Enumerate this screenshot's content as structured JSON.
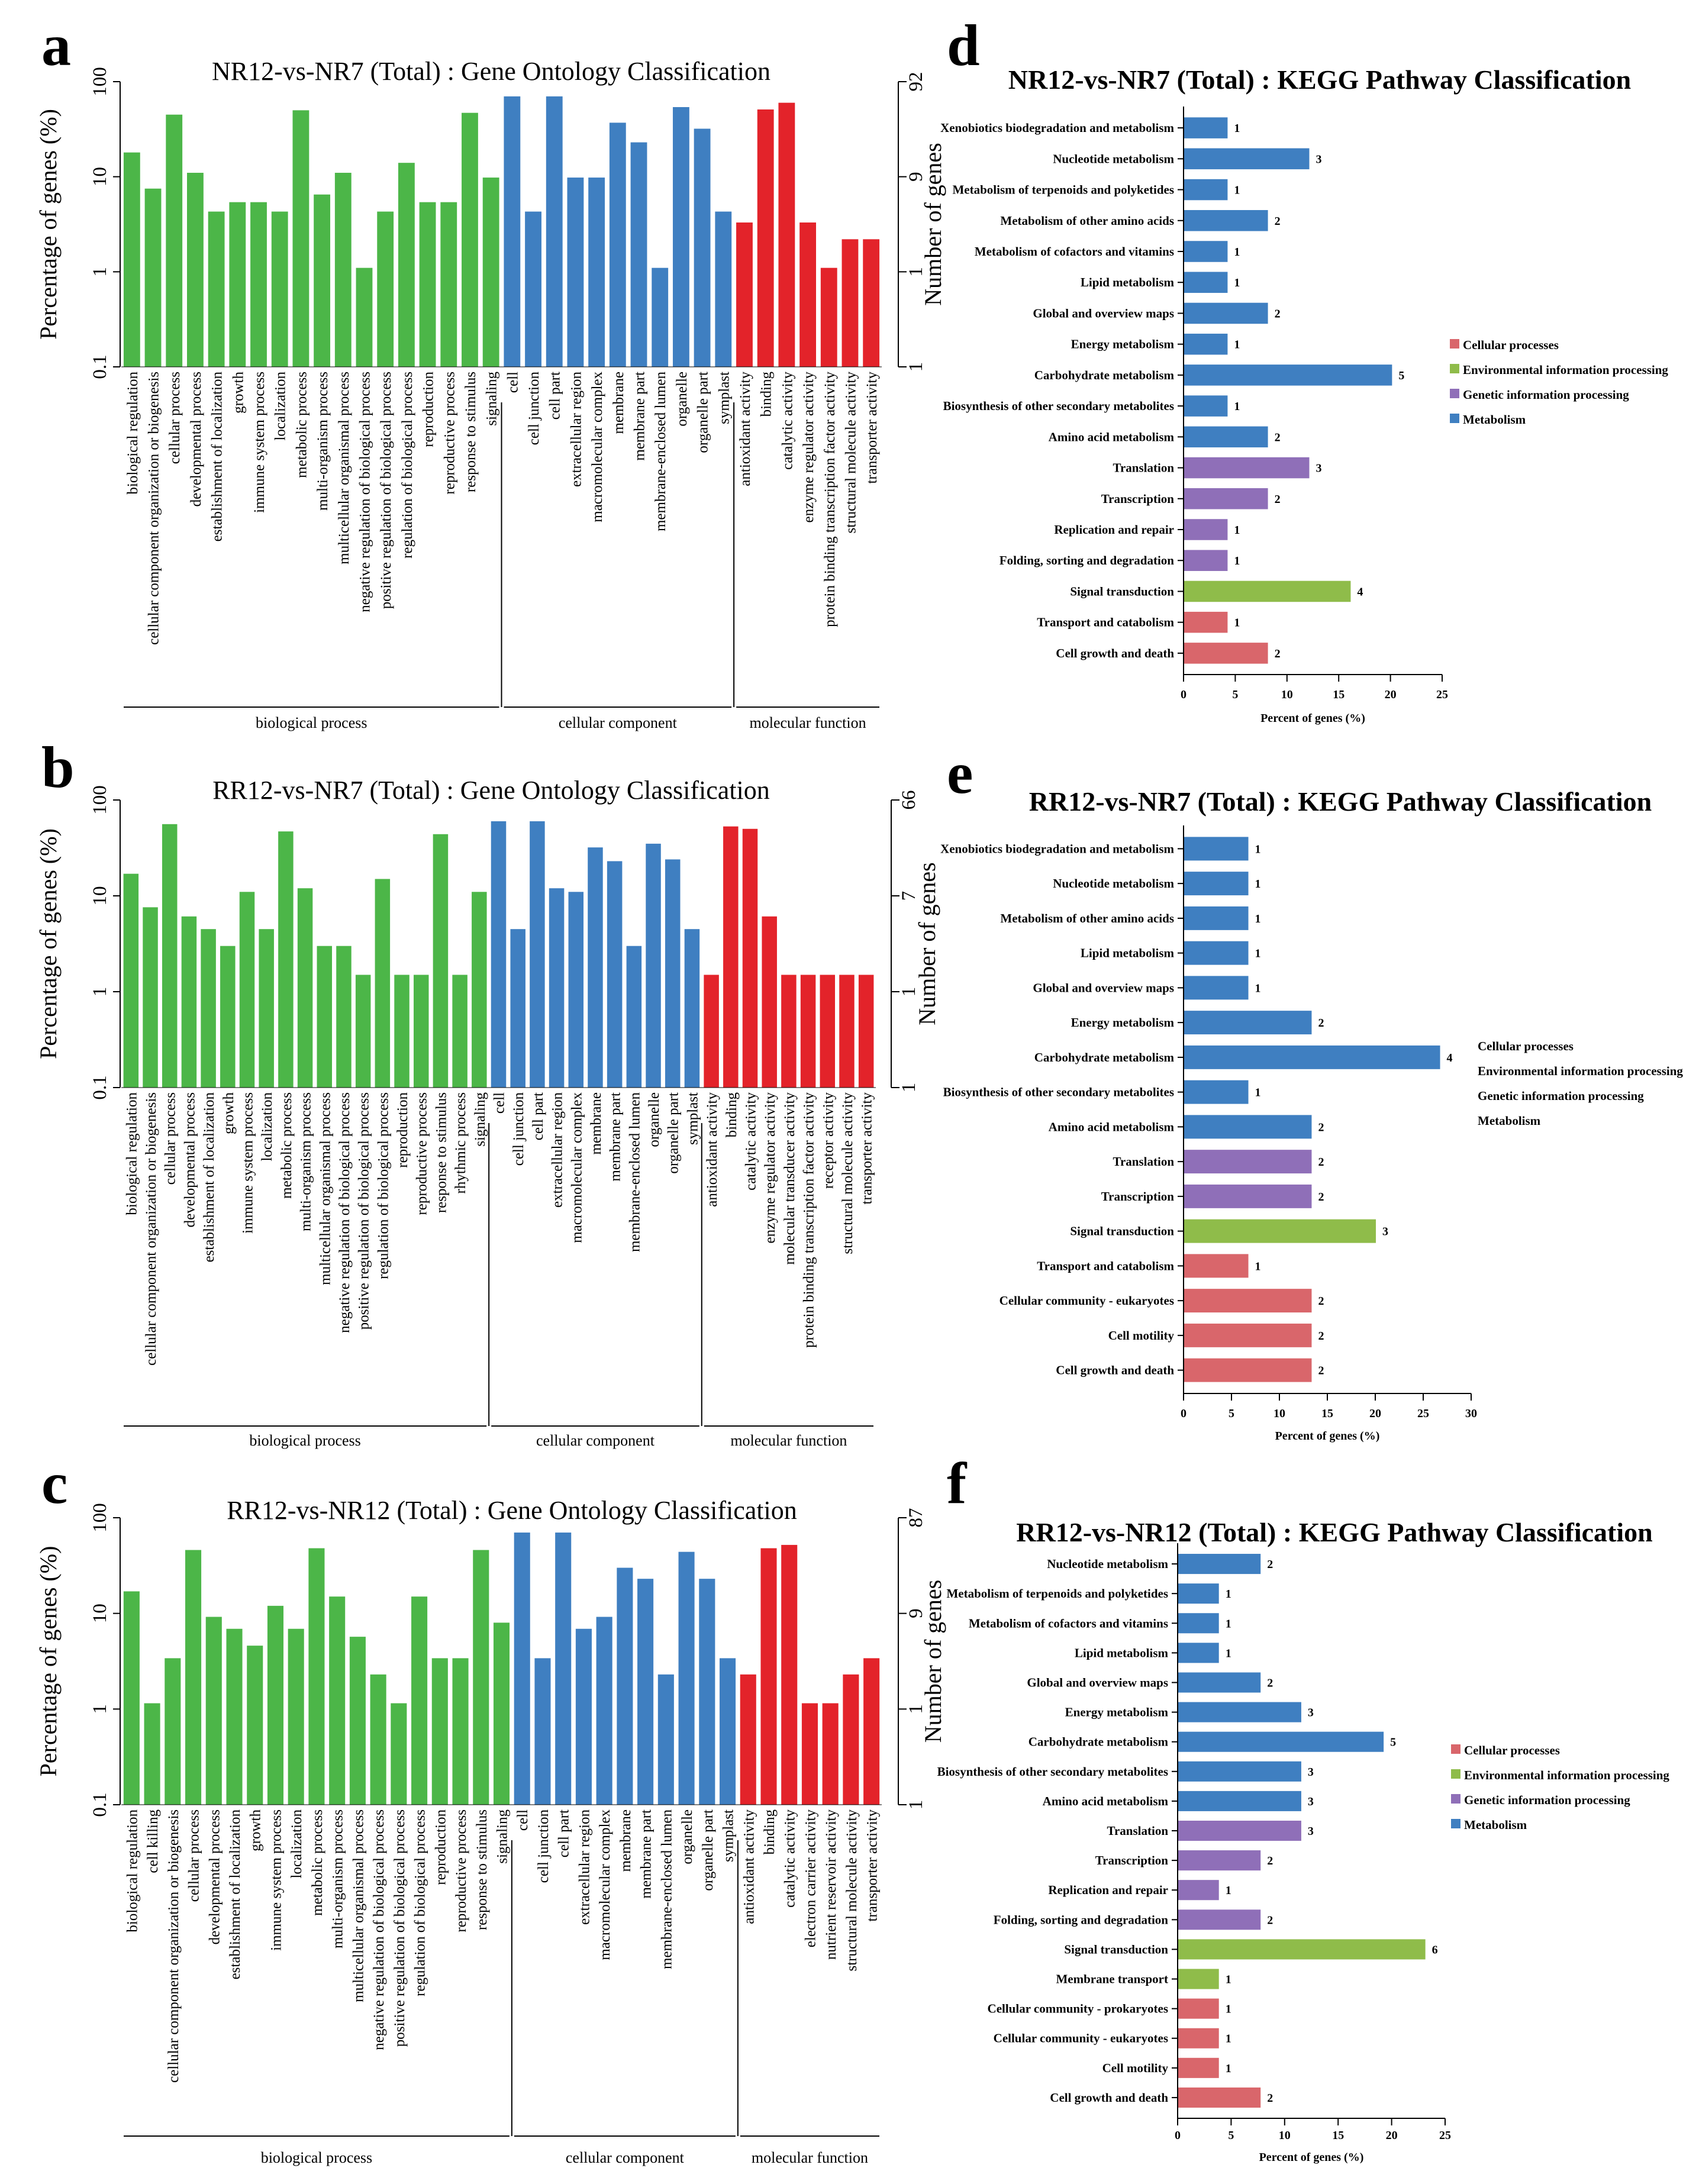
{
  "colors": {
    "biological_process": "#4cb648",
    "cellular_component": "#3f7fc1",
    "molecular_function": "#e3232a",
    "cellular_processes": "#d9666b",
    "environmental_information_processing": "#8fbc4a",
    "genetic_information_processing": "#8f6fb8",
    "metabolism": "#3f7fc1"
  },
  "chart_data": [
    {
      "panel": "a",
      "type": "bar",
      "title": "NR12-vs-NR7 (Total) : Gene Ontology Classification",
      "ylabel": "Percentage of genes (%)",
      "y2label": "Number of genes",
      "yscale": "log",
      "ylim": [
        0.1,
        100
      ],
      "yticks": [
        "0.1",
        "1",
        "10",
        "100"
      ],
      "y2ticks": [
        "1",
        "1",
        "9",
        "92"
      ],
      "groups": [
        {
          "name": "biological process",
          "color_key": "biological_process",
          "categories": [
            "biological regulation",
            "cellular component organization or biogenesis",
            "cellular process",
            "developmental process",
            "establishment of localization",
            "growth",
            "immune system process",
            "localization",
            "metabolic process",
            "multi-organism process",
            "multicellular organismal process",
            "negative regulation of biological process",
            "positive regulation of biological process",
            "regulation of biological process",
            "reproduction",
            "reproductive process",
            "response to stimulus",
            "signaling"
          ],
          "values": [
            18,
            7.5,
            45,
            11,
            4.3,
            5.4,
            5.4,
            4.3,
            50,
            6.5,
            11,
            1.1,
            4.3,
            14,
            5.4,
            5.4,
            47,
            9.8
          ]
        },
        {
          "name": "cellular component",
          "color_key": "cellular_component",
          "categories": [
            "cell",
            "cell junction",
            "cell part",
            "extracellular region",
            "macromolecular complex",
            "membrane",
            "membrane part",
            "membrane-enclosed lumen",
            "organelle",
            "organelle part",
            "symplast"
          ],
          "values": [
            70,
            4.3,
            70,
            9.8,
            9.8,
            37,
            23,
            1.1,
            54,
            32,
            4.3
          ]
        },
        {
          "name": "molecular function",
          "color_key": "molecular_function",
          "categories": [
            "antioxidant activity",
            "binding",
            "catalytic activity",
            "enzyme regulator activity",
            "protein binding transcription factor activity",
            "structural molecule activity",
            "transporter activity"
          ],
          "values": [
            3.3,
            51,
            60,
            3.3,
            1.1,
            2.2,
            2.2
          ]
        }
      ]
    },
    {
      "panel": "b",
      "type": "bar",
      "title": "RR12-vs-NR7 (Total) : Gene Ontology Classification",
      "ylabel": "Percentage of genes (%)",
      "y2label": "Number of genes",
      "yscale": "log",
      "ylim": [
        0.1,
        100
      ],
      "yticks": [
        "0.1",
        "1",
        "10",
        "100"
      ],
      "y2ticks": [
        "1",
        "1",
        "7",
        "66"
      ],
      "groups": [
        {
          "name": "biological process",
          "color_key": "biological_process",
          "categories": [
            "biological regulation",
            "cellular component organization or biogenesis",
            "cellular process",
            "developmental process",
            "establishment of localization",
            "growth",
            "immune system process",
            "localization",
            "metabolic process",
            "multi-organism process",
            "multicellular organismal process",
            "negative regulation of biological process",
            "positive regulation of biological process",
            "regulation of biological process",
            "reproduction",
            "reproductive process",
            "response to stimulus",
            "rhythmic process",
            "signaling"
          ],
          "values": [
            17,
            7.6,
            56,
            6.1,
            4.5,
            3,
            11,
            4.5,
            47,
            12,
            3,
            3,
            1.5,
            15,
            1.5,
            1.5,
            44,
            1.5,
            11
          ]
        },
        {
          "name": "cellular component",
          "color_key": "cellular_component",
          "categories": [
            "cell",
            "cell junction",
            "cell part",
            "extracellular region",
            "macromolecular complex",
            "membrane",
            "membrane part",
            "membrane-enclosed lumen",
            "organelle",
            "organelle part",
            "symplast"
          ],
          "values": [
            60,
            4.5,
            60,
            12,
            11,
            32,
            23,
            3,
            35,
            24,
            4.5
          ]
        },
        {
          "name": "molecular function",
          "color_key": "molecular_function",
          "categories": [
            "antioxidant activity",
            "binding",
            "catalytic activity",
            "enzyme regulator activity",
            "molecular transducer activity",
            "protein binding transcription factor activity",
            "receptor activity",
            "structural molecule activity",
            "transporter activity"
          ],
          "values": [
            1.5,
            53,
            50,
            6.1,
            1.5,
            1.5,
            1.5,
            1.5,
            1.5
          ]
        }
      ]
    },
    {
      "panel": "c",
      "type": "bar",
      "title": "RR12-vs-NR12 (Total) : Gene Ontology Classification",
      "ylabel": "Percentage of genes (%)",
      "y2label": "Number of genes",
      "yscale": "log",
      "ylim": [
        0.1,
        100
      ],
      "yticks": [
        "0.1",
        "1",
        "10",
        "100"
      ],
      "y2ticks": [
        "1",
        "1",
        "9",
        "87"
      ],
      "groups": [
        {
          "name": "biological process",
          "color_key": "biological_process",
          "categories": [
            "biological regulation",
            "cell killing",
            "cellular component organization or biogenesis",
            "cellular process",
            "developmental process",
            "establishment of localization",
            "growth",
            "immune system process",
            "localization",
            "metabolic process",
            "multi-organism process",
            "multicellular organismal process",
            "negative regulation of biological process",
            "positive regulation of biological process",
            "regulation of biological process",
            "reproduction",
            "reproductive process",
            "response to stimulus",
            "signaling"
          ],
          "values": [
            17,
            1.15,
            3.4,
            46,
            9.2,
            6.9,
            4.6,
            12,
            6.9,
            48,
            15,
            5.7,
            2.3,
            1.15,
            15,
            3.4,
            3.4,
            46,
            8
          ]
        },
        {
          "name": "cellular component",
          "color_key": "cellular_component",
          "categories": [
            "cell",
            "cell junction",
            "cell part",
            "extracellular region",
            "macromolecular complex",
            "membrane",
            "membrane part",
            "membrane-enclosed lumen",
            "organelle",
            "organelle part",
            "symplast"
          ],
          "values": [
            70,
            3.4,
            70,
            6.9,
            9.2,
            30,
            23,
            2.3,
            44,
            23,
            3.4
          ]
        },
        {
          "name": "molecular function",
          "color_key": "molecular_function",
          "categories": [
            "antioxidant activity",
            "binding",
            "catalytic activity",
            "electron carrier activity",
            "nutrient reservoir activity",
            "structural molecule activity",
            "transporter activity"
          ],
          "values": [
            2.3,
            48,
            52,
            1.15,
            1.15,
            2.3,
            3.4
          ]
        }
      ]
    },
    {
      "panel": "d",
      "type": "bar",
      "orientation": "horizontal",
      "title": "NR12-vs-NR7 (Total) : KEGG Pathway Classification",
      "xlabel": "Percent of genes (%)",
      "xlim": [
        0,
        25
      ],
      "xticks": [
        "0",
        "5",
        "10",
        "15",
        "20",
        "25"
      ],
      "legend": [
        "Cellular processes",
        "Environmental information processing",
        "Genetic information processing",
        "Metabolism"
      ],
      "legend_keys": [
        "cellular_processes",
        "environmental_information_processing",
        "genetic_information_processing",
        "metabolism"
      ],
      "legend_swatches": true,
      "bars": [
        {
          "label": "Xenobiotics biodegradation and metabolism",
          "value": 4.2,
          "count": "1",
          "color_key": "metabolism"
        },
        {
          "label": "Nucleotide metabolism",
          "value": 12.1,
          "count": "3",
          "color_key": "metabolism"
        },
        {
          "label": "Metabolism of terpenoids and polyketides",
          "value": 4.2,
          "count": "1",
          "color_key": "metabolism"
        },
        {
          "label": "Metabolism of other amino acids",
          "value": 8.1,
          "count": "2",
          "color_key": "metabolism"
        },
        {
          "label": "Metabolism of cofactors and vitamins",
          "value": 4.2,
          "count": "1",
          "color_key": "metabolism"
        },
        {
          "label": "Lipid metabolism",
          "value": 4.2,
          "count": "1",
          "color_key": "metabolism"
        },
        {
          "label": "Global and overview maps",
          "value": 8.1,
          "count": "2",
          "color_key": "metabolism"
        },
        {
          "label": "Energy metabolism",
          "value": 4.2,
          "count": "1",
          "color_key": "metabolism"
        },
        {
          "label": "Carbohydrate metabolism",
          "value": 20.1,
          "count": "5",
          "color_key": "metabolism"
        },
        {
          "label": "Biosynthesis of other secondary metabolites",
          "value": 4.2,
          "count": "1",
          "color_key": "metabolism"
        },
        {
          "label": "Amino acid metabolism",
          "value": 8.1,
          "count": "2",
          "color_key": "metabolism"
        },
        {
          "label": "Translation",
          "value": 12.1,
          "count": "3",
          "color_key": "genetic_information_processing"
        },
        {
          "label": "Transcription",
          "value": 8.1,
          "count": "2",
          "color_key": "genetic_information_processing"
        },
        {
          "label": "Replication and repair",
          "value": 4.2,
          "count": "1",
          "color_key": "genetic_information_processing"
        },
        {
          "label": "Folding, sorting and degradation",
          "value": 4.2,
          "count": "1",
          "color_key": "genetic_information_processing"
        },
        {
          "label": "Signal transduction",
          "value": 16.1,
          "count": "4",
          "color_key": "environmental_information_processing"
        },
        {
          "label": "Transport and catabolism",
          "value": 4.2,
          "count": "1",
          "color_key": "cellular_processes"
        },
        {
          "label": "Cell growth and death",
          "value": 8.1,
          "count": "2",
          "color_key": "cellular_processes"
        }
      ]
    },
    {
      "panel": "e",
      "type": "bar",
      "orientation": "horizontal",
      "title": "RR12-vs-NR7 (Total) : KEGG Pathway Classification",
      "xlabel": "Percent of genes (%)",
      "xlim": [
        0,
        30
      ],
      "xticks": [
        "0",
        "5",
        "10",
        "15",
        "20",
        "25",
        "30"
      ],
      "legend": [
        "Cellular processes",
        "Environmental information processing",
        "Genetic information processing",
        "Metabolism"
      ],
      "legend_keys": [
        "cellular_processes",
        "environmental_information_processing",
        "genetic_information_processing",
        "metabolism"
      ],
      "legend_swatches": false,
      "bars": [
        {
          "label": "Xenobiotics biodegradation and metabolism",
          "value": 6.7,
          "count": "1",
          "color_key": "metabolism"
        },
        {
          "label": "Nucleotide metabolism",
          "value": 6.7,
          "count": "1",
          "color_key": "metabolism"
        },
        {
          "label": "Metabolism of other amino acids",
          "value": 6.7,
          "count": "1",
          "color_key": "metabolism"
        },
        {
          "label": "Lipid metabolism",
          "value": 6.7,
          "count": "1",
          "color_key": "metabolism"
        },
        {
          "label": "Global and overview maps",
          "value": 6.7,
          "count": "1",
          "color_key": "metabolism"
        },
        {
          "label": "Energy metabolism",
          "value": 13.3,
          "count": "2",
          "color_key": "metabolism"
        },
        {
          "label": "Carbohydrate metabolism",
          "value": 26.7,
          "count": "4",
          "color_key": "metabolism"
        },
        {
          "label": "Biosynthesis of other secondary metabolites",
          "value": 6.7,
          "count": "1",
          "color_key": "metabolism"
        },
        {
          "label": "Amino acid metabolism",
          "value": 13.3,
          "count": "2",
          "color_key": "metabolism"
        },
        {
          "label": "Translation",
          "value": 13.3,
          "count": "2",
          "color_key": "genetic_information_processing"
        },
        {
          "label": "Transcription",
          "value": 13.3,
          "count": "2",
          "color_key": "genetic_information_processing"
        },
        {
          "label": "Signal transduction",
          "value": 20,
          "count": "3",
          "color_key": "environmental_information_processing"
        },
        {
          "label": "Transport and catabolism",
          "value": 6.7,
          "count": "1",
          "color_key": "cellular_processes"
        },
        {
          "label": "Cellular community - eukaryotes",
          "value": 13.3,
          "count": "2",
          "color_key": "cellular_processes"
        },
        {
          "label": "Cell motility",
          "value": 13.3,
          "count": "2",
          "color_key": "cellular_processes"
        },
        {
          "label": "Cell growth and death",
          "value": 13.3,
          "count": "2",
          "color_key": "cellular_processes"
        }
      ]
    },
    {
      "panel": "f",
      "type": "bar",
      "orientation": "horizontal",
      "title": "RR12-vs-NR12 (Total) : KEGG Pathway Classification",
      "xlabel": "Percent of genes (%)",
      "xlim": [
        0,
        25
      ],
      "xticks": [
        "0",
        "5",
        "10",
        "15",
        "20",
        "25"
      ],
      "legend": [
        "Cellular processes",
        "Environmental information processing",
        "Genetic information processing",
        "Metabolism"
      ],
      "legend_keys": [
        "cellular_processes",
        "environmental_information_processing",
        "genetic_information_processing",
        "metabolism"
      ],
      "legend_swatches": true,
      "bars": [
        {
          "label": "Nucleotide metabolism",
          "value": 7.7,
          "count": "2",
          "color_key": "metabolism"
        },
        {
          "label": "Metabolism of terpenoids and polyketides",
          "value": 3.8,
          "count": "1",
          "color_key": "metabolism"
        },
        {
          "label": "Metabolism of cofactors and vitamins",
          "value": 3.8,
          "count": "1",
          "color_key": "metabolism"
        },
        {
          "label": "Lipid metabolism",
          "value": 3.8,
          "count": "1",
          "color_key": "metabolism"
        },
        {
          "label": "Global and overview maps",
          "value": 7.7,
          "count": "2",
          "color_key": "metabolism"
        },
        {
          "label": "Energy metabolism",
          "value": 11.5,
          "count": "3",
          "color_key": "metabolism"
        },
        {
          "label": "Carbohydrate metabolism",
          "value": 19.2,
          "count": "5",
          "color_key": "metabolism"
        },
        {
          "label": "Biosynthesis of other secondary metabolites",
          "value": 11.5,
          "count": "3",
          "color_key": "metabolism"
        },
        {
          "label": "Amino acid metabolism",
          "value": 11.5,
          "count": "3",
          "color_key": "metabolism"
        },
        {
          "label": "Translation",
          "value": 11.5,
          "count": "3",
          "color_key": "genetic_information_processing"
        },
        {
          "label": "Transcription",
          "value": 7.7,
          "count": "2",
          "color_key": "genetic_information_processing"
        },
        {
          "label": "Replication and repair",
          "value": 3.8,
          "count": "1",
          "color_key": "genetic_information_processing"
        },
        {
          "label": "Folding, sorting and degradation",
          "value": 7.7,
          "count": "2",
          "color_key": "genetic_information_processing"
        },
        {
          "label": "Signal transduction",
          "value": 23.1,
          "count": "6",
          "color_key": "environmental_information_processing"
        },
        {
          "label": "Membrane transport",
          "value": 3.8,
          "count": "1",
          "color_key": "environmental_information_processing"
        },
        {
          "label": "Cellular community - prokaryotes",
          "value": 3.8,
          "count": "1",
          "color_key": "cellular_processes"
        },
        {
          "label": "Cellular community - eukaryotes",
          "value": 3.8,
          "count": "1",
          "color_key": "cellular_processes"
        },
        {
          "label": "Cell motility",
          "value": 3.8,
          "count": "1",
          "color_key": "cellular_processes"
        },
        {
          "label": "Cell growth and death",
          "value": 7.7,
          "count": "2",
          "color_key": "cellular_processes"
        }
      ]
    }
  ]
}
